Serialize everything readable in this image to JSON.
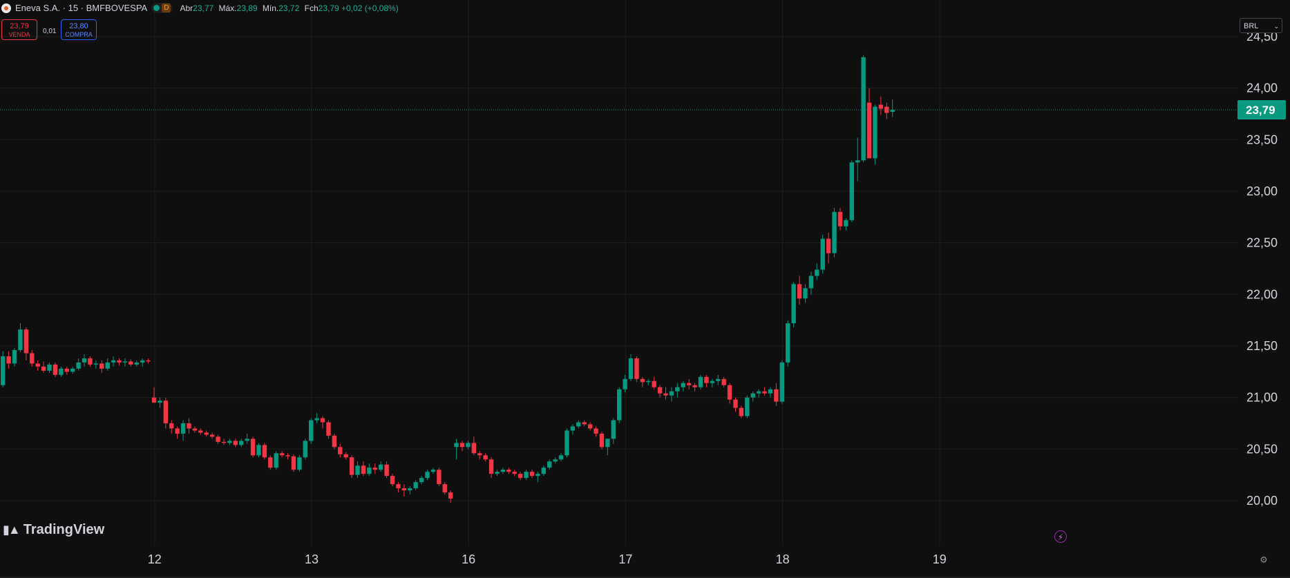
{
  "header": {
    "title": "Eneva S.A. · 15 · BMFBOVESPA",
    "status_badge": "D",
    "ohlc": [
      {
        "key": "Abr",
        "value": "23,77"
      },
      {
        "key": "Máx.",
        "value": "23,89"
      },
      {
        "key": "Mín.",
        "value": "23,72"
      },
      {
        "key": "Fch",
        "value": "23,79 +0,02 (+0,08%)"
      }
    ]
  },
  "trade": {
    "sell_price": "23,79",
    "sell_label": "VENDA",
    "spread": "0,01",
    "buy_price": "23,80",
    "buy_label": "COMPRA"
  },
  "currency": "BRL",
  "brand": "TradingView",
  "colors": {
    "up": "#089981",
    "down": "#f23645",
    "background": "#0f0f0f",
    "grid": "#1f1f1f",
    "price_label": "#089981"
  },
  "chart_data": {
    "type": "candlestick",
    "interval": "15",
    "ylim": [
      19.7,
      24.6
    ],
    "y_ticks": [
      {
        "v": 20.0,
        "label": "20,00"
      },
      {
        "v": 20.5,
        "label": "20,50"
      },
      {
        "v": 21.0,
        "label": "21,00"
      },
      {
        "v": 21.5,
        "label": "21,50"
      },
      {
        "v": 22.0,
        "label": "22,00"
      },
      {
        "v": 22.5,
        "label": "22,50"
      },
      {
        "v": 23.0,
        "label": "23,00"
      },
      {
        "v": 23.5,
        "label": "23,50"
      },
      {
        "v": 24.0,
        "label": "24,00"
      },
      {
        "v": 24.5,
        "label": "24,50"
      }
    ],
    "x_ticks": [
      {
        "i": 26,
        "label": "12"
      },
      {
        "i": 53,
        "label": "13"
      },
      {
        "i": 80,
        "label": "16"
      },
      {
        "i": 107,
        "label": "17"
      },
      {
        "i": 134,
        "label": "18"
      },
      {
        "i": 161,
        "label": "19"
      }
    ],
    "last_price": {
      "value": 23.79,
      "label": "23,79"
    },
    "candles": [
      [
        21.12,
        21.45,
        21.1,
        21.4
      ],
      [
        21.4,
        21.45,
        21.28,
        21.33
      ],
      [
        21.33,
        21.48,
        21.3,
        21.46
      ],
      [
        21.46,
        21.72,
        21.44,
        21.66
      ],
      [
        21.66,
        21.68,
        21.36,
        21.43
      ],
      [
        21.43,
        21.46,
        21.3,
        21.33
      ],
      [
        21.33,
        21.36,
        21.26,
        21.3
      ],
      [
        21.3,
        21.35,
        21.24,
        21.26
      ],
      [
        21.26,
        21.34,
        21.24,
        21.32
      ],
      [
        21.32,
        21.34,
        21.2,
        21.22
      ],
      [
        21.22,
        21.3,
        21.2,
        21.28
      ],
      [
        21.28,
        21.3,
        21.22,
        21.25
      ],
      [
        21.25,
        21.3,
        21.23,
        21.28
      ],
      [
        21.28,
        21.38,
        21.26,
        21.34
      ],
      [
        21.34,
        21.42,
        21.3,
        21.38
      ],
      [
        21.38,
        21.4,
        21.3,
        21.32
      ],
      [
        21.32,
        21.36,
        21.28,
        21.33
      ],
      [
        21.33,
        21.36,
        21.24,
        21.28
      ],
      [
        21.28,
        21.38,
        21.26,
        21.34
      ],
      [
        21.34,
        21.4,
        21.3,
        21.36
      ],
      [
        21.36,
        21.38,
        21.31,
        21.34
      ],
      [
        21.34,
        21.38,
        21.3,
        21.35
      ],
      [
        21.35,
        21.37,
        21.3,
        21.32
      ],
      [
        21.32,
        21.36,
        21.3,
        21.34
      ],
      [
        21.34,
        21.38,
        21.3,
        21.36
      ],
      [
        21.36,
        21.38,
        21.33,
        21.35
      ],
      [
        21.0,
        21.1,
        20.95,
        20.95
      ],
      [
        20.95,
        21.0,
        20.9,
        20.97
      ],
      [
        20.97,
        21.0,
        20.7,
        20.75
      ],
      [
        20.75,
        20.78,
        20.65,
        20.7
      ],
      [
        20.7,
        20.72,
        20.6,
        20.65
      ],
      [
        20.65,
        20.78,
        20.58,
        20.75
      ],
      [
        20.75,
        20.8,
        20.65,
        20.7
      ],
      [
        20.7,
        20.72,
        20.66,
        20.68
      ],
      [
        20.68,
        20.7,
        20.64,
        20.66
      ],
      [
        20.66,
        20.68,
        20.62,
        20.64
      ],
      [
        20.64,
        20.66,
        20.6,
        20.62
      ],
      [
        20.62,
        20.64,
        20.55,
        20.57
      ],
      [
        20.57,
        20.6,
        20.54,
        20.56
      ],
      [
        20.56,
        20.6,
        20.54,
        20.58
      ],
      [
        20.58,
        20.6,
        20.52,
        20.54
      ],
      [
        20.54,
        20.6,
        20.52,
        20.58
      ],
      [
        20.58,
        20.65,
        20.55,
        20.6
      ],
      [
        20.6,
        20.62,
        20.42,
        20.44
      ],
      [
        20.44,
        20.56,
        20.42,
        20.54
      ],
      [
        20.54,
        20.56,
        20.4,
        20.42
      ],
      [
        20.42,
        20.44,
        20.3,
        20.32
      ],
      [
        20.32,
        20.48,
        20.3,
        20.46
      ],
      [
        20.46,
        20.48,
        20.42,
        20.44
      ],
      [
        20.44,
        20.46,
        20.4,
        20.43
      ],
      [
        20.43,
        20.45,
        20.28,
        20.3
      ],
      [
        20.3,
        20.44,
        20.28,
        20.42
      ],
      [
        20.42,
        20.6,
        20.4,
        20.58
      ],
      [
        20.58,
        20.8,
        20.55,
        20.78
      ],
      [
        20.78,
        20.85,
        20.75,
        20.8
      ],
      [
        20.8,
        20.82,
        20.7,
        20.76
      ],
      [
        20.76,
        20.78,
        20.6,
        20.63
      ],
      [
        20.63,
        20.65,
        20.5,
        20.52
      ],
      [
        20.52,
        20.55,
        20.42,
        20.45
      ],
      [
        20.45,
        20.47,
        20.4,
        20.42
      ],
      [
        20.42,
        20.44,
        20.22,
        20.25
      ],
      [
        20.25,
        20.38,
        20.22,
        20.34
      ],
      [
        20.34,
        20.38,
        20.24,
        20.26
      ],
      [
        20.26,
        20.36,
        20.24,
        20.32
      ],
      [
        20.32,
        20.36,
        20.26,
        20.3
      ],
      [
        20.3,
        20.38,
        20.28,
        20.35
      ],
      [
        20.35,
        20.38,
        20.22,
        20.24
      ],
      [
        20.24,
        20.26,
        20.14,
        20.16
      ],
      [
        20.16,
        20.18,
        20.08,
        20.12
      ],
      [
        20.12,
        20.16,
        20.04,
        20.1
      ],
      [
        20.1,
        20.14,
        20.06,
        20.12
      ],
      [
        20.12,
        20.2,
        20.1,
        20.18
      ],
      [
        20.18,
        20.24,
        20.16,
        20.22
      ],
      [
        20.22,
        20.3,
        20.2,
        20.28
      ],
      [
        20.28,
        20.32,
        20.26,
        20.3
      ],
      [
        20.3,
        20.32,
        20.14,
        20.16
      ],
      [
        20.16,
        20.18,
        20.06,
        20.08
      ],
      [
        20.08,
        20.1,
        19.98,
        20.02
      ],
      [
        20.52,
        20.6,
        20.4,
        20.56
      ],
      [
        20.56,
        20.58,
        20.48,
        20.52
      ],
      [
        20.52,
        20.58,
        20.5,
        20.56
      ],
      [
        20.56,
        20.62,
        20.44,
        20.46
      ],
      [
        20.46,
        20.48,
        20.4,
        20.44
      ],
      [
        20.44,
        20.46,
        20.38,
        20.4
      ],
      [
        20.4,
        20.42,
        20.22,
        20.26
      ],
      [
        20.26,
        20.3,
        20.24,
        20.28
      ],
      [
        20.28,
        20.32,
        20.26,
        20.3
      ],
      [
        20.3,
        20.32,
        20.26,
        20.28
      ],
      [
        20.28,
        20.3,
        20.24,
        20.26
      ],
      [
        20.26,
        20.28,
        20.2,
        20.22
      ],
      [
        20.22,
        20.3,
        20.2,
        20.28
      ],
      [
        20.28,
        20.3,
        20.22,
        20.24
      ],
      [
        20.24,
        20.28,
        20.18,
        20.26
      ],
      [
        20.26,
        20.34,
        20.24,
        20.32
      ],
      [
        20.32,
        20.4,
        20.3,
        20.38
      ],
      [
        20.38,
        20.42,
        20.36,
        20.4
      ],
      [
        20.4,
        20.46,
        20.38,
        20.44
      ],
      [
        20.44,
        20.7,
        20.42,
        20.68
      ],
      [
        20.68,
        20.74,
        20.64,
        20.72
      ],
      [
        20.72,
        20.78,
        20.7,
        20.76
      ],
      [
        20.76,
        20.78,
        20.72,
        20.74
      ],
      [
        20.74,
        20.76,
        20.68,
        20.7
      ],
      [
        20.7,
        20.72,
        20.62,
        20.65
      ],
      [
        20.65,
        20.67,
        20.5,
        20.52
      ],
      [
        20.52,
        20.6,
        20.44,
        20.6
      ],
      [
        20.6,
        20.8,
        20.55,
        20.78
      ],
      [
        20.78,
        21.1,
        20.75,
        21.08
      ],
      [
        21.08,
        21.22,
        21.05,
        21.18
      ],
      [
        21.18,
        21.42,
        21.16,
        21.38
      ],
      [
        21.38,
        21.4,
        21.15,
        21.18
      ],
      [
        21.18,
        21.2,
        21.1,
        21.15
      ],
      [
        21.15,
        21.18,
        21.12,
        21.16
      ],
      [
        21.16,
        21.2,
        21.08,
        21.1
      ],
      [
        21.1,
        21.12,
        21.0,
        21.04
      ],
      [
        21.04,
        21.1,
        20.98,
        21.02
      ],
      [
        21.02,
        21.1,
        20.96,
        21.06
      ],
      [
        21.06,
        21.14,
        21.0,
        21.1
      ],
      [
        21.1,
        21.16,
        21.06,
        21.14
      ],
      [
        21.14,
        21.18,
        21.08,
        21.12
      ],
      [
        21.12,
        21.14,
        21.06,
        21.1
      ],
      [
        21.1,
        21.22,
        21.08,
        21.2
      ],
      [
        21.2,
        21.22,
        21.1,
        21.14
      ],
      [
        21.14,
        21.18,
        21.1,
        21.16
      ],
      [
        21.16,
        21.22,
        21.12,
        21.18
      ],
      [
        21.18,
        21.2,
        21.1,
        21.12
      ],
      [
        21.12,
        21.14,
        20.94,
        20.98
      ],
      [
        20.98,
        21.0,
        20.86,
        20.9
      ],
      [
        20.9,
        20.92,
        20.8,
        20.82
      ],
      [
        20.82,
        21.02,
        20.8,
        21.0
      ],
      [
        21.0,
        21.06,
        20.96,
        21.04
      ],
      [
        21.04,
        21.08,
        21.0,
        21.06
      ],
      [
        21.06,
        21.1,
        21.02,
        21.04
      ],
      [
        21.04,
        21.1,
        21.0,
        21.08
      ],
      [
        21.08,
        21.14,
        20.92,
        20.96
      ],
      [
        20.96,
        21.36,
        20.94,
        21.34
      ],
      [
        21.34,
        21.75,
        21.3,
        21.72
      ],
      [
        21.72,
        22.12,
        21.68,
        22.1
      ],
      [
        22.1,
        22.18,
        21.9,
        21.96
      ],
      [
        21.96,
        22.1,
        21.92,
        22.06
      ],
      [
        22.06,
        22.22,
        22.0,
        22.18
      ],
      [
        22.18,
        22.3,
        22.14,
        22.24
      ],
      [
        22.24,
        22.58,
        22.2,
        22.54
      ],
      [
        22.54,
        22.6,
        22.3,
        22.4
      ],
      [
        22.4,
        22.84,
        22.36,
        22.8
      ],
      [
        22.8,
        22.84,
        22.62,
        22.66
      ],
      [
        22.66,
        22.74,
        22.62,
        22.72
      ],
      [
        22.72,
        23.3,
        22.7,
        23.28
      ],
      [
        23.28,
        23.52,
        23.1,
        23.3
      ],
      [
        23.3,
        24.32,
        23.28,
        24.3
      ],
      [
        23.86,
        24.0,
        23.32,
        23.32
      ],
      [
        23.32,
        23.84,
        23.26,
        23.82
      ],
      [
        23.84,
        23.92,
        23.74,
        23.8
      ],
      [
        23.82,
        23.86,
        23.7,
        23.76
      ],
      [
        23.77,
        23.89,
        23.72,
        23.79
      ]
    ]
  }
}
